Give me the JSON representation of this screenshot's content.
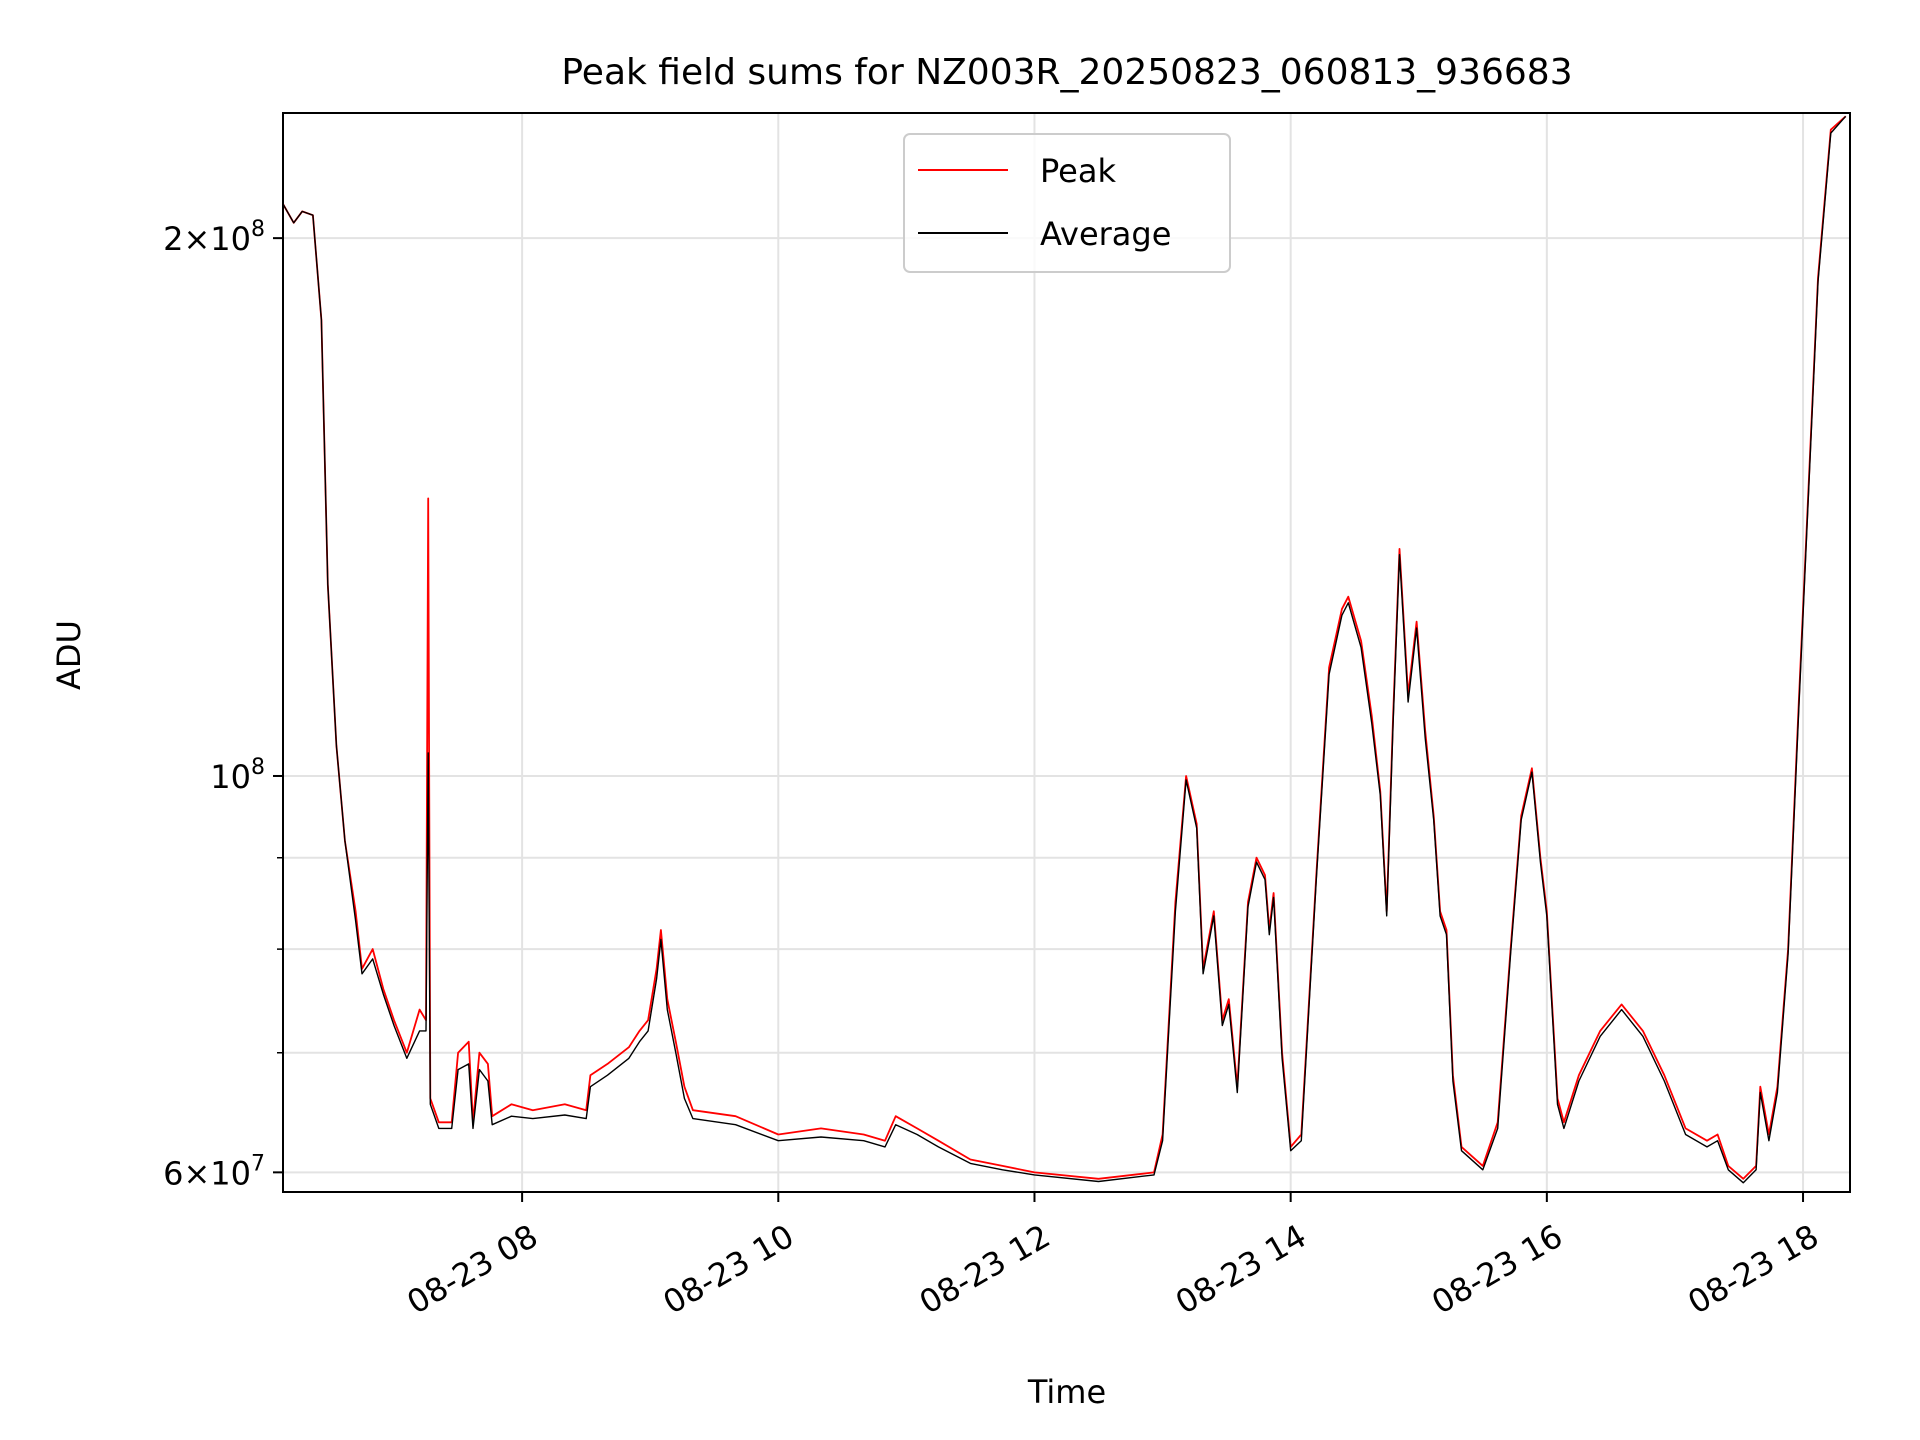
{
  "chart_data": {
    "type": "line",
    "title": "Peak field sums for NZ003R_20250823_060813_936683",
    "xlabel": "Time",
    "ylabel": "ADU",
    "y_scale": "log",
    "ylim": [
      58500000,
      235000000
    ],
    "xlim": [
      "2025-08-23T06:08",
      "2025-08-23T18:22"
    ],
    "grid": true,
    "legend_placement": "top-center",
    "x_tick_labels": [
      {
        "t": "2025-08-23T08:00",
        "label": "08-23 08"
      },
      {
        "t": "2025-08-23T10:00",
        "label": "08-23 10"
      },
      {
        "t": "2025-08-23T12:00",
        "label": "08-23 12"
      },
      {
        "t": "2025-08-23T14:00",
        "label": "08-23 14"
      },
      {
        "t": "2025-08-23T16:00",
        "label": "08-23 16"
      },
      {
        "t": "2025-08-23T18:00",
        "label": "08-23 18"
      }
    ],
    "y_tick_labels": [
      {
        "value": 60000000,
        "mantissa": "6",
        "exp": "7"
      },
      {
        "value": 100000000,
        "mantissa": "",
        "exp": "8"
      },
      {
        "value": 200000000,
        "mantissa": "2",
        "exp": "8"
      }
    ],
    "y_minor_ticks": [
      70000000,
      80000000,
      90000000
    ],
    "series": [
      {
        "name": "Peak",
        "color": "#ff0000",
        "points": [
          [
            "2025-08-23T06:08",
            209000000
          ],
          [
            "2025-08-23T06:13",
            204000000
          ],
          [
            "2025-08-23T06:17",
            207000000
          ],
          [
            "2025-08-23T06:22",
            206000000
          ],
          [
            "2025-08-23T06:26",
            180000000
          ],
          [
            "2025-08-23T06:29",
            128000000
          ],
          [
            "2025-08-23T06:33",
            104000000
          ],
          [
            "2025-08-23T06:37",
            92000000
          ],
          [
            "2025-08-23T06:42",
            84000000
          ],
          [
            "2025-08-23T06:45",
            78000000
          ],
          [
            "2025-08-23T06:50",
            80000000
          ],
          [
            "2025-08-23T06:55",
            76000000
          ],
          [
            "2025-08-23T07:00",
            73000000
          ],
          [
            "2025-08-23T07:06",
            70000000
          ],
          [
            "2025-08-23T07:12",
            74000000
          ],
          [
            "2025-08-23T07:15",
            73000000
          ],
          [
            "2025-08-23T07:16",
            143000000
          ],
          [
            "2025-08-23T07:17",
            66000000
          ],
          [
            "2025-08-23T07:21",
            64000000
          ],
          [
            "2025-08-23T07:27",
            64000000
          ],
          [
            "2025-08-23T07:30",
            70000000
          ],
          [
            "2025-08-23T07:35",
            71000000
          ],
          [
            "2025-08-23T07:37",
            64000000
          ],
          [
            "2025-08-23T07:40",
            70000000
          ],
          [
            "2025-08-23T07:44",
            69000000
          ],
          [
            "2025-08-23T07:46",
            64500000
          ],
          [
            "2025-08-23T07:55",
            65500000
          ],
          [
            "2025-08-23T08:05",
            65000000
          ],
          [
            "2025-08-23T08:20",
            65500000
          ],
          [
            "2025-08-23T08:30",
            65000000
          ],
          [
            "2025-08-23T08:32",
            68000000
          ],
          [
            "2025-08-23T08:40",
            69000000
          ],
          [
            "2025-08-23T08:50",
            70500000
          ],
          [
            "2025-08-23T08:55",
            72000000
          ],
          [
            "2025-08-23T08:59",
            73000000
          ],
          [
            "2025-08-23T09:03",
            78000000
          ],
          [
            "2025-08-23T09:05",
            82000000
          ],
          [
            "2025-08-23T09:08",
            75000000
          ],
          [
            "2025-08-23T09:12",
            71000000
          ],
          [
            "2025-08-23T09:16",
            67000000
          ],
          [
            "2025-08-23T09:20",
            65000000
          ],
          [
            "2025-08-23T09:40",
            64500000
          ],
          [
            "2025-08-23T10:00",
            63000000
          ],
          [
            "2025-08-23T10:20",
            63500000
          ],
          [
            "2025-08-23T10:40",
            63000000
          ],
          [
            "2025-08-23T10:50",
            62500000
          ],
          [
            "2025-08-23T10:55",
            64500000
          ],
          [
            "2025-08-23T11:05",
            63500000
          ],
          [
            "2025-08-23T11:15",
            62500000
          ],
          [
            "2025-08-23T11:30",
            61000000
          ],
          [
            "2025-08-23T11:45",
            60500000
          ],
          [
            "2025-08-23T12:00",
            60000000
          ],
          [
            "2025-08-23T12:30",
            59500000
          ],
          [
            "2025-08-23T12:56",
            60000000
          ],
          [
            "2025-08-23T13:00",
            63000000
          ],
          [
            "2025-08-23T13:06",
            85000000
          ],
          [
            "2025-08-23T13:11",
            100000000
          ],
          [
            "2025-08-23T13:16",
            94000000
          ],
          [
            "2025-08-23T13:19",
            78000000
          ],
          [
            "2025-08-23T13:24",
            84000000
          ],
          [
            "2025-08-23T13:28",
            73000000
          ],
          [
            "2025-08-23T13:31",
            75000000
          ],
          [
            "2025-08-23T13:35",
            67000000
          ],
          [
            "2025-08-23T13:40",
            85000000
          ],
          [
            "2025-08-23T13:44",
            90000000
          ],
          [
            "2025-08-23T13:48",
            88000000
          ],
          [
            "2025-08-23T13:50",
            82000000
          ],
          [
            "2025-08-23T13:52",
            86000000
          ],
          [
            "2025-08-23T13:56",
            70000000
          ],
          [
            "2025-08-23T14:00",
            62000000
          ],
          [
            "2025-08-23T14:05",
            63000000
          ],
          [
            "2025-08-23T14:12",
            88000000
          ],
          [
            "2025-08-23T14:18",
            115000000
          ],
          [
            "2025-08-23T14:24",
            124000000
          ],
          [
            "2025-08-23T14:27",
            126000000
          ],
          [
            "2025-08-23T14:33",
            119000000
          ],
          [
            "2025-08-23T14:38",
            108000000
          ],
          [
            "2025-08-23T14:42",
            98000000
          ],
          [
            "2025-08-23T14:45",
            84000000
          ],
          [
            "2025-08-23T14:48",
            108000000
          ],
          [
            "2025-08-23T14:51",
            134000000
          ],
          [
            "2025-08-23T14:55",
            111000000
          ],
          [
            "2025-08-23T14:59",
            122000000
          ],
          [
            "2025-08-23T15:03",
            106000000
          ],
          [
            "2025-08-23T15:07",
            95000000
          ],
          [
            "2025-08-23T15:10",
            84000000
          ],
          [
            "2025-08-23T15:13",
            82000000
          ],
          [
            "2025-08-23T15:16",
            68000000
          ],
          [
            "2025-08-23T15:20",
            62000000
          ],
          [
            "2025-08-23T15:30",
            60500000
          ],
          [
            "2025-08-23T15:37",
            64000000
          ],
          [
            "2025-08-23T15:43",
            80000000
          ],
          [
            "2025-08-23T15:48",
            95000000
          ],
          [
            "2025-08-23T15:53",
            101000000
          ],
          [
            "2025-08-23T15:57",
            90000000
          ],
          [
            "2025-08-23T16:00",
            84000000
          ],
          [
            "2025-08-23T16:05",
            66000000
          ],
          [
            "2025-08-23T16:08",
            64000000
          ],
          [
            "2025-08-23T16:15",
            68000000
          ],
          [
            "2025-08-23T16:25",
            72000000
          ],
          [
            "2025-08-23T16:35",
            74500000
          ],
          [
            "2025-08-23T16:45",
            72000000
          ],
          [
            "2025-08-23T16:55",
            68000000
          ],
          [
            "2025-08-23T17:05",
            63500000
          ],
          [
            "2025-08-23T17:15",
            62500000
          ],
          [
            "2025-08-23T17:20",
            63000000
          ],
          [
            "2025-08-23T17:25",
            60500000
          ],
          [
            "2025-08-23T17:32",
            59500000
          ],
          [
            "2025-08-23T17:38",
            60500000
          ],
          [
            "2025-08-23T17:40",
            67000000
          ],
          [
            "2025-08-23T17:44",
            63000000
          ],
          [
            "2025-08-23T17:48",
            67000000
          ],
          [
            "2025-08-23T17:53",
            80000000
          ],
          [
            "2025-08-23T17:58",
            110000000
          ],
          [
            "2025-08-23T18:02",
            140000000
          ],
          [
            "2025-08-23T18:07",
            190000000
          ],
          [
            "2025-08-23T18:13",
            230000000
          ],
          [
            "2025-08-23T18:20",
            234000000
          ]
        ]
      },
      {
        "name": "Average",
        "color": "#000000",
        "points": [
          [
            "2025-08-23T06:08",
            209000000
          ],
          [
            "2025-08-23T06:13",
            204000000
          ],
          [
            "2025-08-23T06:17",
            207000000
          ],
          [
            "2025-08-23T06:22",
            206000000
          ],
          [
            "2025-08-23T06:26",
            180000000
          ],
          [
            "2025-08-23T06:29",
            128000000
          ],
          [
            "2025-08-23T06:33",
            104000000
          ],
          [
            "2025-08-23T06:37",
            92000000
          ],
          [
            "2025-08-23T06:42",
            83000000
          ],
          [
            "2025-08-23T06:45",
            77500000
          ],
          [
            "2025-08-23T06:50",
            79000000
          ],
          [
            "2025-08-23T06:55",
            75500000
          ],
          [
            "2025-08-23T07:00",
            72500000
          ],
          [
            "2025-08-23T07:06",
            69500000
          ],
          [
            "2025-08-23T07:12",
            72000000
          ],
          [
            "2025-08-23T07:15",
            72000000
          ],
          [
            "2025-08-23T07:16",
            103000000
          ],
          [
            "2025-08-23T07:17",
            65500000
          ],
          [
            "2025-08-23T07:21",
            63500000
          ],
          [
            "2025-08-23T07:27",
            63500000
          ],
          [
            "2025-08-23T07:30",
            68500000
          ],
          [
            "2025-08-23T07:35",
            69000000
          ],
          [
            "2025-08-23T07:37",
            63500000
          ],
          [
            "2025-08-23T07:40",
            68500000
          ],
          [
            "2025-08-23T07:44",
            67500000
          ],
          [
            "2025-08-23T07:46",
            63800000
          ],
          [
            "2025-08-23T07:55",
            64500000
          ],
          [
            "2025-08-23T08:05",
            64300000
          ],
          [
            "2025-08-23T08:20",
            64600000
          ],
          [
            "2025-08-23T08:30",
            64300000
          ],
          [
            "2025-08-23T08:32",
            67000000
          ],
          [
            "2025-08-23T08:40",
            68000000
          ],
          [
            "2025-08-23T08:50",
            69500000
          ],
          [
            "2025-08-23T08:55",
            71000000
          ],
          [
            "2025-08-23T08:59",
            72000000
          ],
          [
            "2025-08-23T09:03",
            77000000
          ],
          [
            "2025-08-23T09:05",
            81000000
          ],
          [
            "2025-08-23T09:08",
            74000000
          ],
          [
            "2025-08-23T09:12",
            70000000
          ],
          [
            "2025-08-23T09:16",
            66000000
          ],
          [
            "2025-08-23T09:20",
            64300000
          ],
          [
            "2025-08-23T09:40",
            63800000
          ],
          [
            "2025-08-23T10:00",
            62500000
          ],
          [
            "2025-08-23T10:20",
            62800000
          ],
          [
            "2025-08-23T10:40",
            62500000
          ],
          [
            "2025-08-23T10:50",
            62000000
          ],
          [
            "2025-08-23T10:55",
            63800000
          ],
          [
            "2025-08-23T11:05",
            63000000
          ],
          [
            "2025-08-23T11:15",
            62000000
          ],
          [
            "2025-08-23T11:30",
            60700000
          ],
          [
            "2025-08-23T11:45",
            60200000
          ],
          [
            "2025-08-23T12:00",
            59800000
          ],
          [
            "2025-08-23T12:30",
            59300000
          ],
          [
            "2025-08-23T12:56",
            59800000
          ],
          [
            "2025-08-23T13:00",
            62500000
          ],
          [
            "2025-08-23T13:06",
            84000000
          ],
          [
            "2025-08-23T13:11",
            99500000
          ],
          [
            "2025-08-23T13:16",
            93500000
          ],
          [
            "2025-08-23T13:19",
            77500000
          ],
          [
            "2025-08-23T13:24",
            83500000
          ],
          [
            "2025-08-23T13:28",
            72500000
          ],
          [
            "2025-08-23T13:31",
            74500000
          ],
          [
            "2025-08-23T13:35",
            66500000
          ],
          [
            "2025-08-23T13:40",
            84500000
          ],
          [
            "2025-08-23T13:44",
            89500000
          ],
          [
            "2025-08-23T13:48",
            87500000
          ],
          [
            "2025-08-23T13:50",
            81500000
          ],
          [
            "2025-08-23T13:52",
            85500000
          ],
          [
            "2025-08-23T13:56",
            69500000
          ],
          [
            "2025-08-23T14:00",
            61700000
          ],
          [
            "2025-08-23T14:05",
            62500000
          ],
          [
            "2025-08-23T14:12",
            87500000
          ],
          [
            "2025-08-23T14:18",
            114000000
          ],
          [
            "2025-08-23T14:24",
            123000000
          ],
          [
            "2025-08-23T14:27",
            125000000
          ],
          [
            "2025-08-23T14:33",
            118000000
          ],
          [
            "2025-08-23T14:38",
            107000000
          ],
          [
            "2025-08-23T14:42",
            97500000
          ],
          [
            "2025-08-23T14:45",
            83500000
          ],
          [
            "2025-08-23T14:48",
            107000000
          ],
          [
            "2025-08-23T14:51",
            133000000
          ],
          [
            "2025-08-23T14:55",
            110000000
          ],
          [
            "2025-08-23T14:59",
            121000000
          ],
          [
            "2025-08-23T15:03",
            105000000
          ],
          [
            "2025-08-23T15:07",
            94500000
          ],
          [
            "2025-08-23T15:10",
            83500000
          ],
          [
            "2025-08-23T15:13",
            81500000
          ],
          [
            "2025-08-23T15:16",
            67500000
          ],
          [
            "2025-08-23T15:20",
            61700000
          ],
          [
            "2025-08-23T15:30",
            60200000
          ],
          [
            "2025-08-23T15:37",
            63500000
          ],
          [
            "2025-08-23T15:43",
            79500000
          ],
          [
            "2025-08-23T15:48",
            94500000
          ],
          [
            "2025-08-23T15:53",
            100500000
          ],
          [
            "2025-08-23T15:57",
            89500000
          ],
          [
            "2025-08-23T16:00",
            83500000
          ],
          [
            "2025-08-23T16:05",
            65500000
          ],
          [
            "2025-08-23T16:08",
            63500000
          ],
          [
            "2025-08-23T16:15",
            67500000
          ],
          [
            "2025-08-23T16:25",
            71500000
          ],
          [
            "2025-08-23T16:35",
            74000000
          ],
          [
            "2025-08-23T16:45",
            71500000
          ],
          [
            "2025-08-23T16:55",
            67500000
          ],
          [
            "2025-08-23T17:05",
            63000000
          ],
          [
            "2025-08-23T17:15",
            62000000
          ],
          [
            "2025-08-23T17:20",
            62500000
          ],
          [
            "2025-08-23T17:25",
            60200000
          ],
          [
            "2025-08-23T17:32",
            59200000
          ],
          [
            "2025-08-23T17:38",
            60200000
          ],
          [
            "2025-08-23T17:40",
            66500000
          ],
          [
            "2025-08-23T17:44",
            62500000
          ],
          [
            "2025-08-23T17:48",
            66500000
          ],
          [
            "2025-08-23T17:53",
            79500000
          ],
          [
            "2025-08-23T17:58",
            109000000
          ],
          [
            "2025-08-23T18:02",
            139000000
          ],
          [
            "2025-08-23T18:07",
            189000000
          ],
          [
            "2025-08-23T18:13",
            229000000
          ],
          [
            "2025-08-23T18:20",
            234000000
          ]
        ]
      }
    ]
  }
}
